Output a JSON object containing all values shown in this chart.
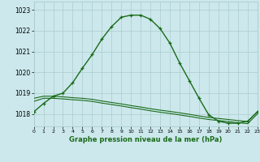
{
  "line1_x": [
    0,
    1,
    2,
    3,
    4,
    5,
    6,
    7,
    8,
    9,
    10,
    11,
    12,
    13,
    14,
    15,
    16,
    17,
    18,
    19,
    20,
    21,
    22,
    23
  ],
  "line1_y": [
    1018.1,
    1018.5,
    1018.85,
    1019.0,
    1019.5,
    1020.2,
    1020.85,
    1021.6,
    1022.2,
    1022.65,
    1022.75,
    1022.75,
    1022.55,
    1022.1,
    1021.4,
    1020.45,
    1019.6,
    1018.75,
    1017.95,
    1017.65,
    1017.55,
    1017.55,
    1017.65,
    1018.1
  ],
  "line2_x": [
    0,
    1,
    2,
    3,
    4,
    5,
    6,
    7,
    8,
    9,
    10,
    11,
    12,
    13,
    14,
    15,
    16,
    17,
    18,
    19,
    20,
    21,
    22,
    23
  ],
  "line2_y": [
    1018.75,
    1018.85,
    1018.85,
    1018.82,
    1018.78,
    1018.75,
    1018.7,
    1018.62,
    1018.55,
    1018.48,
    1018.4,
    1018.33,
    1018.25,
    1018.18,
    1018.12,
    1018.05,
    1017.98,
    1017.9,
    1017.83,
    1017.78,
    1017.73,
    1017.68,
    1017.63,
    1018.1
  ],
  "line3_x": [
    0,
    1,
    2,
    3,
    4,
    5,
    6,
    7,
    8,
    9,
    10,
    11,
    12,
    13,
    14,
    15,
    16,
    17,
    18,
    19,
    20,
    21,
    22,
    23
  ],
  "line3_y": [
    1018.6,
    1018.75,
    1018.75,
    1018.72,
    1018.68,
    1018.65,
    1018.6,
    1018.52,
    1018.45,
    1018.38,
    1018.3,
    1018.23,
    1018.15,
    1018.08,
    1018.02,
    1017.95,
    1017.88,
    1017.8,
    1017.73,
    1017.68,
    1017.63,
    1017.58,
    1017.53,
    1018.0
  ],
  "line_color": "#1a6b1a",
  "bg_color": "#cce8ec",
  "grid_color": "#aacccc",
  "xlabel": "Graphe pression niveau de la mer (hPa)",
  "ylim_min": 1017.4,
  "ylim_max": 1023.4,
  "xlim_min": 0,
  "xlim_max": 23,
  "yticks": [
    1018,
    1019,
    1020,
    1021,
    1022,
    1023
  ],
  "xticks": [
    0,
    1,
    2,
    3,
    4,
    5,
    6,
    7,
    8,
    9,
    10,
    11,
    12,
    13,
    14,
    15,
    16,
    17,
    18,
    19,
    20,
    21,
    22,
    23
  ]
}
